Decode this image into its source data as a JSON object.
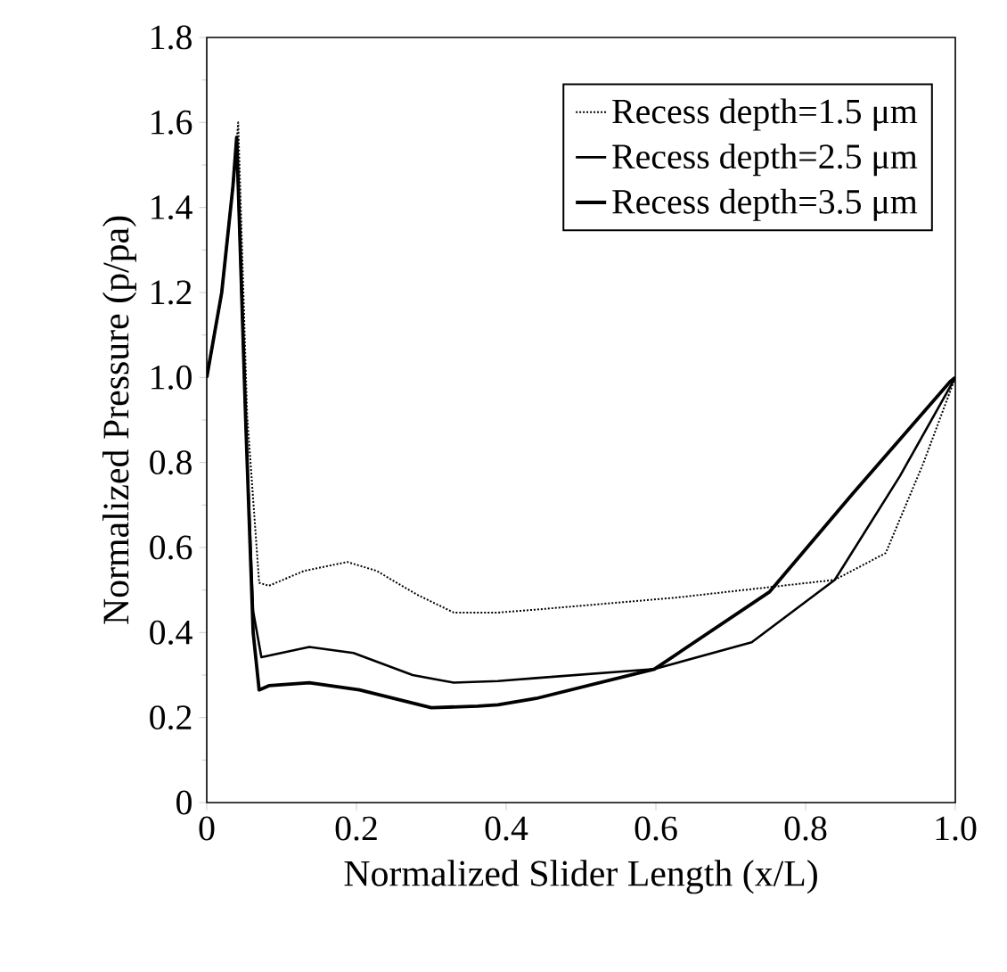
{
  "chart_data": {
    "type": "line",
    "xlabel": "Normalized Slider Length (x/L)",
    "ylabel": "Normalized Pressure (p/pa)",
    "xlim": [
      0,
      1
    ],
    "ylim": [
      0,
      1.8
    ],
    "xticks": [
      0,
      0.2,
      0.4,
      0.6,
      0.8,
      {
        "value": 1,
        "label": "1.0"
      }
    ],
    "yticks": [
      0,
      0.2,
      0.4,
      0.6,
      0.8,
      {
        "value": 1,
        "label": "1.0"
      },
      1.2,
      1.4,
      1.6,
      1.8
    ],
    "grid": false,
    "legend": "top right",
    "marker": "none",
    "series": [
      {
        "name": "Recess depth=1.5 μm",
        "color": "#000000",
        "line_style": "dotted",
        "x": [
          0,
          0.02,
          0.035,
          0.042,
          0.054,
          0.07,
          0.083,
          0.13,
          0.188,
          0.227,
          0.28,
          0.33,
          0.389,
          0.44,
          0.626,
          0.768,
          0.839,
          0.907,
          0.957,
          1.0
        ],
        "values": [
          1.0,
          1.2,
          1.45,
          1.6,
          0.91,
          0.517,
          0.51,
          0.545,
          0.566,
          0.545,
          0.49,
          0.447,
          0.447,
          0.454,
          0.482,
          0.51,
          0.524,
          0.587,
          0.797,
          1.0
        ]
      },
      {
        "name": "Recess depth=2.5 μm",
        "color": "#000000",
        "line_style": "solid",
        "x": [
          0,
          0.02,
          0.035,
          0.04,
          0.052,
          0.062,
          0.073,
          0.137,
          0.196,
          0.275,
          0.33,
          0.389,
          0.44,
          0.598,
          0.728,
          0.839,
          0.926,
          1.0
        ],
        "values": [
          1.0,
          1.2,
          1.45,
          1.56,
          0.9,
          0.45,
          0.342,
          0.366,
          0.352,
          0.3,
          0.282,
          0.286,
          0.293,
          0.314,
          0.377,
          0.524,
          0.768,
          1.0
        ]
      },
      {
        "name": "Recess depth=3.5 μm",
        "color": "#000000",
        "line_style": "solid",
        "x": [
          0,
          0.02,
          0.035,
          0.04,
          0.052,
          0.062,
          0.07,
          0.083,
          0.137,
          0.204,
          0.3,
          0.362,
          0.389,
          0.44,
          0.598,
          0.752,
          0.863,
          0.993,
          1.0
        ],
        "values": [
          1.0,
          1.2,
          1.45,
          1.565,
          0.9,
          0.4,
          0.265,
          0.275,
          0.282,
          0.265,
          0.223,
          0.227,
          0.23,
          0.245,
          0.314,
          0.496,
          0.727,
          0.99,
          1.0
        ]
      }
    ]
  }
}
